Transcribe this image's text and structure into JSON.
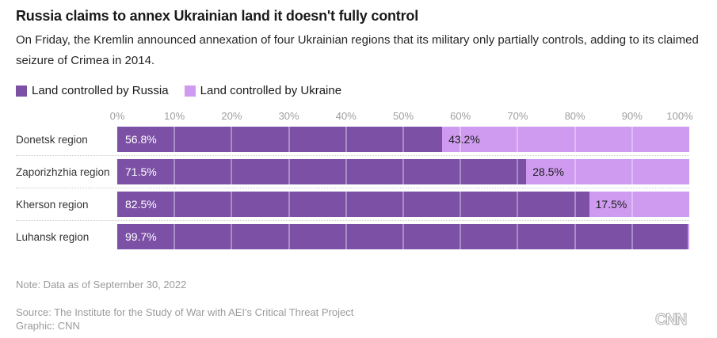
{
  "header": {
    "title": "Russia claims to annex Ukrainian land it doesn't fully control",
    "subtitle": "On Friday, the Kremlin announced annexation of four Ukrainian regions that its military only partially controls, adding to its claimed seizure of Crimea in 2014."
  },
  "legend": [
    {
      "label": "Land controlled by Russia",
      "color": "#7c50a5"
    },
    {
      "label": "Land controlled by Ukraine",
      "color": "#ce9bf0"
    }
  ],
  "chart_data": {
    "type": "bar",
    "stacked": true,
    "orientation": "horizontal",
    "title": "Russia claims to annex Ukrainian land it doesn't fully control",
    "categories": [
      "Donetsk region",
      "Zaporizhzhia region",
      "Kherson region",
      "Luhansk region"
    ],
    "series": [
      {
        "name": "Land controlled by Russia",
        "color": "#7c50a5",
        "values": [
          56.8,
          71.5,
          82.5,
          99.7
        ],
        "labels": [
          "56.8%",
          "71.5%",
          "82.5%",
          "99.7%"
        ]
      },
      {
        "name": "Land controlled by Ukraine",
        "color": "#ce9bf0",
        "values": [
          43.2,
          28.5,
          17.5,
          0.3
        ],
        "labels": [
          "43.2%",
          "28.5%",
          "17.5%",
          null
        ]
      }
    ],
    "x_ticks": [
      "0%",
      "10%",
      "20%",
      "30%",
      "40%",
      "50%",
      "60%",
      "70%",
      "80%",
      "90%",
      "100%"
    ],
    "xlim": [
      0,
      100
    ],
    "grid": "vertical-white-on-bars",
    "legend_position": "top"
  },
  "footer": {
    "note": "Note: Data as of September 30, 2022",
    "source": "Source: The Institute for the Study of War with AEI's Critical Threat Project",
    "graphic": "Graphic: CNN",
    "logo_text": "CNN"
  }
}
